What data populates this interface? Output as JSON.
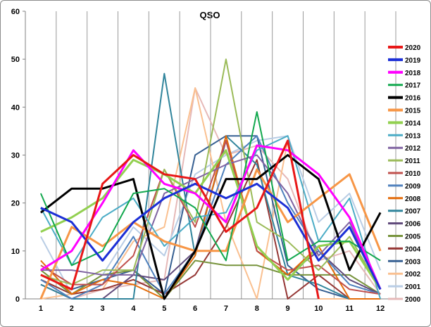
{
  "chart_data": {
    "type": "line",
    "title": "QSO",
    "xlabel": "",
    "ylabel": "",
    "x": [
      1,
      2,
      3,
      4,
      5,
      6,
      7,
      8,
      9,
      10,
      11,
      12
    ],
    "xlim": [
      0.5,
      12.5
    ],
    "ylim": [
      0,
      60
    ],
    "y_ticks": [
      0,
      10,
      20,
      30,
      40,
      50,
      60
    ],
    "grid": "vertical",
    "legend_position": "right",
    "series": [
      {
        "name": "2020",
        "color": "#e81717",
        "width": 3,
        "values": [
          5,
          2,
          24,
          30,
          26,
          25,
          14,
          19,
          33,
          0,
          null,
          null
        ]
      },
      {
        "name": "2019",
        "color": "#1c2fd6",
        "width": 3,
        "values": [
          19,
          16,
          8,
          16,
          21,
          24,
          21,
          24,
          19,
          8,
          15,
          2
        ]
      },
      {
        "name": "2018",
        "color": "#ff00ff",
        "width": 3,
        "values": [
          6,
          10,
          20,
          31,
          24,
          22,
          16,
          32,
          31,
          26,
          17,
          2
        ]
      },
      {
        "name": "2017",
        "color": "#12a84e",
        "width": 2,
        "values": [
          22,
          7,
          10,
          22,
          23,
          19,
          8,
          39,
          8,
          12,
          12,
          8
        ]
      },
      {
        "name": "2016",
        "color": "#000000",
        "width": 3,
        "values": [
          18,
          23,
          23,
          25,
          0,
          10,
          25,
          25,
          30,
          25,
          6,
          18
        ]
      },
      {
        "name": "2015",
        "color": "#f79646",
        "width": 3,
        "values": [
          0,
          15,
          11,
          16,
          12,
          10,
          10,
          27,
          16,
          21,
          26,
          10
        ]
      },
      {
        "name": "2014",
        "color": "#92d050",
        "width": 3,
        "values": [
          14,
          17,
          21,
          29,
          26,
          22,
          31,
          11,
          4,
          11,
          12,
          2
        ]
      },
      {
        "name": "2013",
        "color": "#4bacc6",
        "width": 2,
        "values": [
          19,
          7,
          17,
          21,
          11,
          17,
          18,
          31,
          34,
          12,
          21,
          0
        ]
      },
      {
        "name": "2012",
        "color": "#8064a2",
        "width": 2,
        "values": [
          6,
          6,
          5,
          5,
          22,
          25,
          28,
          30,
          22,
          9,
          16,
          2
        ]
      },
      {
        "name": "2011",
        "color": "#9bbb59",
        "width": 2,
        "values": [
          5,
          3,
          6,
          6,
          27,
          16,
          50,
          16,
          12,
          6,
          13,
          2
        ]
      },
      {
        "name": "2010",
        "color": "#c0504d",
        "width": 2,
        "values": [
          7,
          3,
          3,
          9,
          27,
          15,
          33,
          10,
          6,
          7,
          2,
          1
        ]
      },
      {
        "name": "2009",
        "color": "#4f81bd",
        "width": 2,
        "values": [
          4,
          0,
          3,
          13,
          1,
          10,
          28,
          34,
          20,
          10,
          3,
          1
        ]
      },
      {
        "name": "2008",
        "color": "#e46c0a",
        "width": 2,
        "values": [
          8,
          1,
          4,
          3,
          0,
          9,
          34,
          10,
          5,
          11,
          0,
          0
        ]
      },
      {
        "name": "2007",
        "color": "#31859c",
        "width": 2,
        "values": [
          3,
          0,
          0,
          0,
          47,
          9,
          34,
          28,
          5,
          3,
          0,
          0
        ]
      },
      {
        "name": "2006",
        "color": "#5f497a",
        "width": 2,
        "values": [
          3,
          0,
          0,
          5,
          4,
          10,
          33,
          10,
          5,
          10,
          4,
          1
        ]
      },
      {
        "name": "2005",
        "color": "#77933c",
        "width": 2,
        "values": [
          6,
          1,
          5,
          6,
          0,
          8,
          7,
          7,
          5,
          5,
          5,
          1
        ]
      },
      {
        "name": "2004",
        "color": "#953735",
        "width": 2,
        "values": [
          4,
          1,
          2,
          4,
          1,
          5,
          15,
          29,
          0,
          5,
          0,
          0
        ]
      },
      {
        "name": "2003",
        "color": "#376092",
        "width": 2,
        "values": [
          5,
          2,
          4,
          6,
          1,
          30,
          34,
          34,
          7,
          2,
          0,
          0
        ]
      },
      {
        "name": "2002",
        "color": "#fac090",
        "width": 2,
        "values": [
          0,
          1,
          2,
          12,
          15,
          44,
          16,
          0,
          33,
          0,
          0,
          0
        ]
      },
      {
        "name": "2001",
        "color": "#b9cde5",
        "width": 2,
        "values": [
          13,
          1,
          5,
          15,
          9,
          26,
          30,
          33,
          34,
          16,
          22,
          6
        ]
      },
      {
        "name": "2000",
        "color": "#e6b9b8",
        "width": 2,
        "values": [
          3,
          0,
          2,
          3,
          4,
          44,
          30,
          32,
          25,
          8,
          10,
          1
        ]
      }
    ]
  }
}
